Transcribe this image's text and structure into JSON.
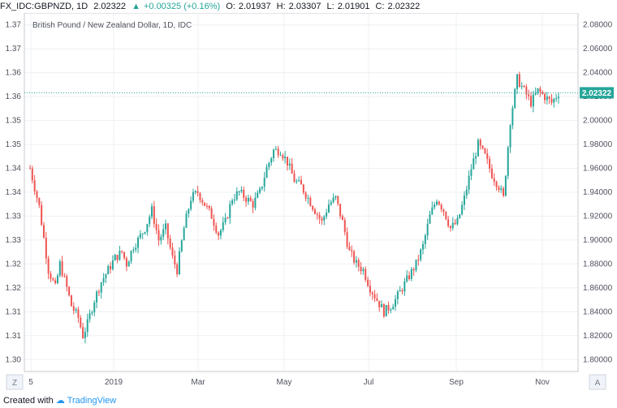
{
  "header": {
    "symbol": "FX_IDC:GBPNZD, 1D",
    "last": "2.02322",
    "change": "+0.00325 (+0.16%)",
    "open_label": "O:",
    "open": "2.01937",
    "high_label": "H:",
    "high": "2.03307",
    "low_label": "L:",
    "low": "2.01901",
    "close_label": "C:",
    "close": "2.02322"
  },
  "footer": {
    "prefix": "Created with",
    "brand": "TradingView"
  },
  "chart_data": {
    "type": "candlestick",
    "title": "British Pound / New Zealand Dollar, 1D, IDC",
    "x_tick_labels": [
      "5",
      "2019",
      "Mar",
      "May",
      "Jul",
      "Sep",
      "Nov"
    ],
    "left_axis_ticks": [
      "1.37",
      "1.37",
      "1.36",
      "1.36",
      "1.35",
      "1.35",
      "1.34",
      "1.34",
      "1.33",
      "1.33",
      "1.32",
      "1.32",
      "1.31",
      "1.31",
      "1.30"
    ],
    "right_axis_ticks": [
      "2.08000",
      "2.06000",
      "2.04000",
      "2.02000",
      "2.00000",
      "1.98000",
      "1.96000",
      "1.94000",
      "1.92000",
      "1.90000",
      "1.88000",
      "1.86000",
      "1.84000",
      "1.82000",
      "1.80000"
    ],
    "ylim": [
      1.79,
      2.09
    ],
    "last_price": 2.02322,
    "last_price_label": "2.02322",
    "up_color": "#26a69a",
    "down_color": "#ef5350",
    "left_corner_label": "Z",
    "right_corner_label": "A",
    "close_path": [
      [
        0,
        1.96
      ],
      [
        4,
        1.928
      ],
      [
        8,
        1.875
      ],
      [
        11,
        1.86
      ],
      [
        13,
        1.88
      ],
      [
        16,
        1.86
      ],
      [
        18,
        1.845
      ],
      [
        21,
        1.835
      ],
      [
        23,
        1.82
      ],
      [
        25,
        1.83
      ],
      [
        28,
        1.85
      ],
      [
        31,
        1.865
      ],
      [
        34,
        1.875
      ],
      [
        37,
        1.885
      ],
      [
        40,
        1.89
      ],
      [
        42,
        1.88
      ],
      [
        45,
        1.895
      ],
      [
        47,
        1.9
      ],
      [
        50,
        1.91
      ],
      [
        53,
        1.925
      ],
      [
        56,
        1.9
      ],
      [
        59,
        1.91
      ],
      [
        62,
        1.885
      ],
      [
        64,
        1.875
      ],
      [
        67,
        1.91
      ],
      [
        70,
        1.935
      ],
      [
        73,
        1.94
      ],
      [
        76,
        1.93
      ],
      [
        79,
        1.92
      ],
      [
        82,
        1.905
      ],
      [
        85,
        1.915
      ],
      [
        88,
        1.935
      ],
      [
        91,
        1.94
      ],
      [
        94,
        1.935
      ],
      [
        97,
        1.93
      ],
      [
        100,
        1.94
      ],
      [
        103,
        1.96
      ],
      [
        106,
        1.975
      ],
      [
        109,
        1.975
      ],
      [
        112,
        1.965
      ],
      [
        115,
        1.95
      ],
      [
        118,
        1.945
      ],
      [
        121,
        1.935
      ],
      [
        124,
        1.925
      ],
      [
        127,
        1.915
      ],
      [
        130,
        1.93
      ],
      [
        133,
        1.935
      ],
      [
        136,
        1.915
      ],
      [
        139,
        1.89
      ],
      [
        142,
        1.88
      ],
      [
        145,
        1.875
      ],
      [
        148,
        1.86
      ],
      [
        151,
        1.85
      ],
      [
        154,
        1.84
      ],
      [
        157,
        1.845
      ],
      [
        159,
        1.85
      ],
      [
        162,
        1.86
      ],
      [
        165,
        1.87
      ],
      [
        168,
        1.88
      ],
      [
        171,
        1.895
      ],
      [
        174,
        1.92
      ],
      [
        177,
        1.935
      ],
      [
        180,
        1.925
      ],
      [
        183,
        1.91
      ],
      [
        186,
        1.915
      ],
      [
        189,
        1.935
      ],
      [
        192,
        1.96
      ],
      [
        195,
        1.98
      ],
      [
        198,
        1.97
      ],
      [
        201,
        1.955
      ],
      [
        204,
        1.945
      ],
      [
        206,
        1.935
      ],
      [
        209,
        2.0
      ],
      [
        212,
        2.035
      ],
      [
        215,
        2.025
      ],
      [
        218,
        2.015
      ],
      [
        221,
        2.025
      ],
      [
        224,
        2.02
      ],
      [
        227,
        2.015
      ],
      [
        230,
        2.023
      ]
    ]
  }
}
